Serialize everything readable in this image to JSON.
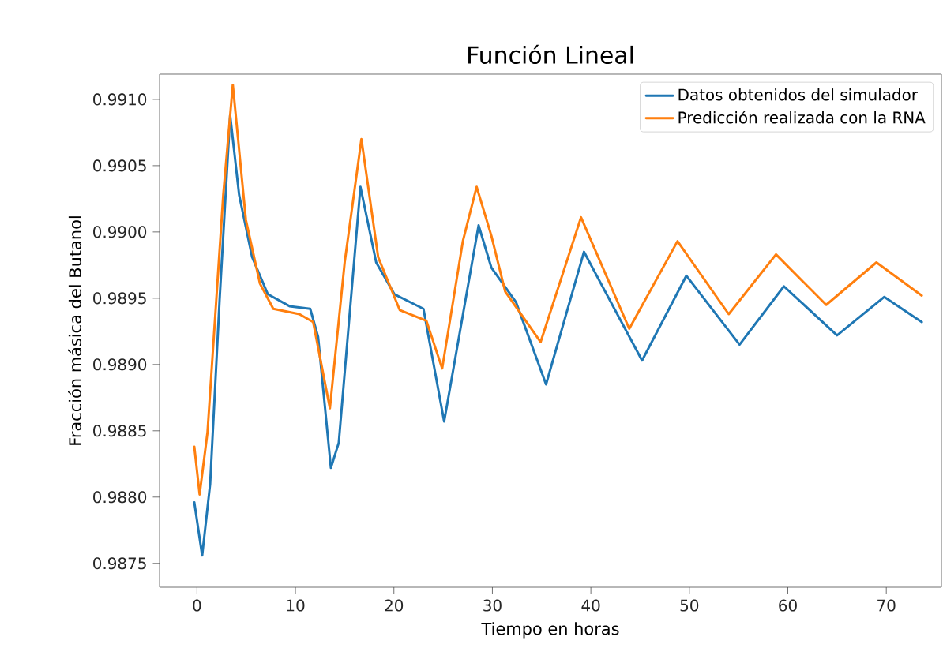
{
  "chart_data": {
    "type": "line",
    "title": "Función Lineal",
    "xlabel": "Tiempo en horas",
    "ylabel": "Fracción másica del Butanol",
    "xlim": [
      -3.8,
      75.6
    ],
    "ylim": [
      0.98732,
      0.99119
    ],
    "xticks": [
      0,
      10,
      20,
      30,
      40,
      50,
      60,
      70
    ],
    "yticks": [
      {
        "value": 0.9875,
        "label": "0.9875"
      },
      {
        "value": 0.988,
        "label": "0.9880"
      },
      {
        "value": 0.9885,
        "label": "0.9885"
      },
      {
        "value": 0.989,
        "label": "0.9890"
      },
      {
        "value": 0.9895,
        "label": "0.9895"
      },
      {
        "value": 0.99,
        "label": "0.9900"
      },
      {
        "value": 0.9905,
        "label": "0.9905"
      },
      {
        "value": 0.991,
        "label": "0.9910"
      }
    ],
    "grid": false,
    "legend": "top right",
    "marker": "none",
    "line_style": "solid",
    "series": [
      {
        "name": "Datos obtenidos del simulador",
        "color": "#1f77b4",
        "x": [
          -0.27,
          0.53,
          1.34,
          2.3,
          3.37,
          4.28,
          5.6,
          7.2,
          9.4,
          11.5,
          12.3,
          13.6,
          14.4,
          16.6,
          18.2,
          20.05,
          23.0,
          25.1,
          28.6,
          29.9,
          32.4,
          35.45,
          39.3,
          45.2,
          49.7,
          55.1,
          59.6,
          65.0,
          69.8,
          73.6
        ],
        "values": [
          0.98796,
          0.98756,
          0.9881,
          0.98949,
          0.99088,
          0.99028,
          0.98981,
          0.98953,
          0.98944,
          0.98942,
          0.98921,
          0.98822,
          0.98841,
          0.99034,
          0.98977,
          0.98953,
          0.98942,
          0.98857,
          0.99005,
          0.98973,
          0.98947,
          0.98885,
          0.98985,
          0.98903,
          0.98967,
          0.98915,
          0.98959,
          0.98922,
          0.98951,
          0.98932
        ]
      },
      {
        "name": "Predicción realizada con la RNA",
        "color": "#ff7f0e",
        "x": [
          -0.27,
          0.27,
          1.07,
          2.67,
          3.64,
          4.97,
          6.4,
          7.75,
          10.4,
          11.8,
          13.5,
          15.0,
          16.7,
          18.4,
          20.6,
          23.3,
          24.9,
          27.0,
          28.4,
          29.9,
          31.3,
          34.9,
          39.0,
          43.9,
          48.8,
          54.0,
          58.8,
          63.9,
          69.0,
          73.6
        ],
        "values": [
          0.98838,
          0.98802,
          0.98849,
          0.99028,
          0.99111,
          0.99009,
          0.98961,
          0.98942,
          0.98938,
          0.98932,
          0.98867,
          0.98977,
          0.9907,
          0.98981,
          0.98941,
          0.98933,
          0.98897,
          0.98993,
          0.99034,
          0.98997,
          0.98955,
          0.98917,
          0.99011,
          0.98927,
          0.98993,
          0.98938,
          0.98983,
          0.98945,
          0.98977,
          0.98952
        ]
      }
    ]
  }
}
